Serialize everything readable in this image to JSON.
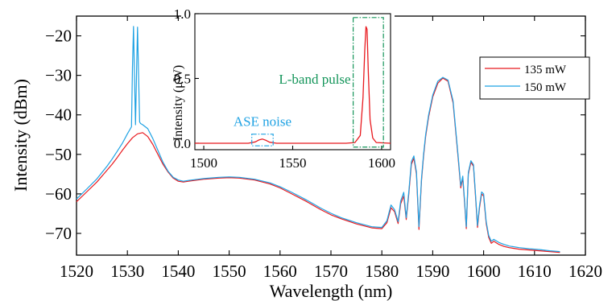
{
  "chart_data": [
    {
      "type": "line",
      "xlabel": "Wavelength (nm)",
      "ylabel": "Intensity (dBm)",
      "xlim": [
        1520,
        1620
      ],
      "ylim": [
        -75.5,
        -15
      ],
      "xticks": [
        1520,
        1530,
        1540,
        1550,
        1560,
        1570,
        1580,
        1590,
        1600,
        1610,
        1620
      ],
      "xtick_labels": [
        "1520",
        "1530",
        "1540",
        "1550",
        "1560",
        "1570",
        "1580",
        "1590",
        "1600",
        "1610",
        "1620"
      ],
      "yticks": [
        -70,
        -60,
        -50,
        -40,
        -30,
        -20
      ],
      "ytick_labels": [
        "−70",
        "−60",
        "−50",
        "−40",
        "−30",
        "−20"
      ],
      "legend": "top-right",
      "grid": false,
      "series": [
        {
          "name": "135 mW",
          "color": "#e8191e",
          "x": [
            1520,
            1522,
            1524,
            1526,
            1527,
            1528,
            1529,
            1530,
            1531,
            1532,
            1533,
            1534,
            1535,
            1536,
            1537,
            1538,
            1539,
            1540,
            1541,
            1542,
            1545,
            1548,
            1550,
            1552,
            1555,
            1558,
            1560,
            1562,
            1565,
            1568,
            1570,
            1572,
            1575,
            1578,
            1580,
            1581,
            1581.8,
            1582.5,
            1583.2,
            1583.7,
            1584.3,
            1584.8,
            1585.3,
            1585.8,
            1586.3,
            1586.8,
            1587.3,
            1587.8,
            1588.2,
            1588.6,
            1589.2,
            1590,
            1591,
            1592,
            1593,
            1594,
            1595,
            1595.5,
            1595.9,
            1596.3,
            1596.6,
            1597,
            1597.5,
            1598,
            1598.4,
            1598.8,
            1599.2,
            1599.6,
            1600,
            1600.5,
            1601,
            1601.5,
            1602,
            1603,
            1604,
            1605,
            1607,
            1609,
            1611,
            1613,
            1615
          ],
          "y": [
            -62,
            -59.5,
            -57,
            -54,
            -52.5,
            -50.8,
            -49,
            -47.3,
            -45.8,
            -44.8,
            -44.5,
            -45.5,
            -47.5,
            -50,
            -52.5,
            -54.5,
            -56,
            -56.8,
            -57,
            -56.8,
            -56.3,
            -56,
            -55.9,
            -56,
            -56.5,
            -57.5,
            -58.5,
            -59.8,
            -61.8,
            -64,
            -65.3,
            -66.3,
            -67.6,
            -68.6,
            -68.8,
            -67.3,
            -63.5,
            -64.5,
            -67.5,
            -62.5,
            -60.5,
            -66.5,
            -60,
            -52.5,
            -51,
            -55,
            -69,
            -56.5,
            -50.5,
            -45.5,
            -40.5,
            -35.5,
            -32,
            -30.7,
            -31.5,
            -37,
            -51,
            -58.5,
            -56,
            -63,
            -68.8,
            -55,
            -52,
            -53,
            -60.5,
            -68.5,
            -63.5,
            -60,
            -60.5,
            -67.5,
            -71,
            -72.5,
            -72,
            -72.8,
            -73.3,
            -73.6,
            -74,
            -74.2,
            -74.4,
            -74.6,
            -74.8
          ]
        },
        {
          "name": "150 mW",
          "color": "#1fa2e3",
          "x": [
            1520,
            1522,
            1524,
            1526,
            1527,
            1528,
            1529,
            1530,
            1530.8,
            1531.0,
            1531.2,
            1531.4,
            1531.6,
            1531.8,
            1532.0,
            1532.2,
            1532.4,
            1532.6,
            1533,
            1534,
            1535,
            1536,
            1537,
            1538,
            1539,
            1540,
            1541,
            1542,
            1545,
            1548,
            1550,
            1552,
            1555,
            1558,
            1560,
            1562,
            1565,
            1568,
            1570,
            1572,
            1575,
            1578,
            1580,
            1581,
            1581.8,
            1582.5,
            1583.2,
            1583.7,
            1584.3,
            1584.8,
            1585.3,
            1585.8,
            1586.3,
            1586.8,
            1587.3,
            1587.8,
            1588.2,
            1588.6,
            1589.2,
            1590,
            1591,
            1592,
            1593,
            1594,
            1595,
            1595.5,
            1595.9,
            1596.3,
            1596.6,
            1597,
            1597.5,
            1598,
            1598.4,
            1598.8,
            1599.2,
            1599.6,
            1600,
            1600.5,
            1601,
            1601.5,
            1602,
            1603,
            1604,
            1605,
            1607,
            1609,
            1611,
            1613,
            1615
          ],
          "y": [
            -61.3,
            -58.8,
            -56.2,
            -53,
            -51.2,
            -49.2,
            -47.2,
            -44.8,
            -43,
            -28,
            -17.6,
            -30,
            -42.5,
            -29,
            -17.8,
            -30,
            -41.8,
            -42.2,
            -42.5,
            -43.5,
            -46,
            -49,
            -52,
            -54.3,
            -55.8,
            -56.5,
            -56.8,
            -56.6,
            -56.1,
            -55.8,
            -55.7,
            -55.8,
            -56.3,
            -57.2,
            -58.2,
            -59.4,
            -61.4,
            -63.6,
            -64.9,
            -66,
            -67.3,
            -68.3,
            -68.5,
            -66.8,
            -62.8,
            -64,
            -67,
            -61.8,
            -59.6,
            -66,
            -59.4,
            -51.8,
            -50.4,
            -54.5,
            -68.3,
            -56,
            -50,
            -45,
            -40,
            -35,
            -31.5,
            -30.5,
            -31.2,
            -36.5,
            -50.5,
            -58,
            -55.5,
            -62.4,
            -68.3,
            -54.6,
            -51.6,
            -52.6,
            -60,
            -68,
            -63,
            -59.5,
            -60,
            -67,
            -70.5,
            -72,
            -71.5,
            -72.3,
            -72.8,
            -73.2,
            -73.6,
            -73.9,
            -74.1,
            -74.4,
            -74.6
          ]
        }
      ]
    },
    {
      "type": "line",
      "xlabel": "",
      "ylabel": "Intensity (μW)",
      "xlim": [
        1495,
        1605
      ],
      "ylim": [
        -0.05,
        1.0
      ],
      "xticks": [
        1500,
        1550,
        1600
      ],
      "xtick_labels": [
        "1500",
        "1550",
        "1600"
      ],
      "yticks": [
        0.0,
        0.5,
        1.0
      ],
      "ytick_labels": [
        "0.0",
        "0.5",
        "1.0"
      ],
      "grid": false,
      "annotations": [
        {
          "text": "ASE noise",
          "color": "#1fa2e3",
          "box_x": [
            1527,
            1539
          ],
          "box_y": [
            -0.02,
            0.07
          ]
        },
        {
          "text": "L-band pulse",
          "color": "#14955a",
          "box_x": [
            1584,
            1601
          ],
          "box_y": [
            -0.03,
            0.97
          ]
        }
      ],
      "series": [
        {
          "name": "",
          "color": "#e8191e",
          "x": [
            1495,
            1525,
            1529,
            1531,
            1533,
            1535,
            1537,
            1541,
            1580,
            1585,
            1588,
            1589.5,
            1590.5,
            1591.2,
            1591.8,
            1592.5,
            1593.5,
            1595,
            1597,
            1605
          ],
          "y": [
            0,
            0,
            0.01,
            0.025,
            0.032,
            0.022,
            0.008,
            0,
            0,
            0.005,
            0.06,
            0.35,
            0.72,
            0.9,
            0.88,
            0.55,
            0.18,
            0.04,
            0.005,
            0
          ]
        }
      ]
    }
  ],
  "legend_entries": [
    "135 mW",
    "150 mW"
  ]
}
